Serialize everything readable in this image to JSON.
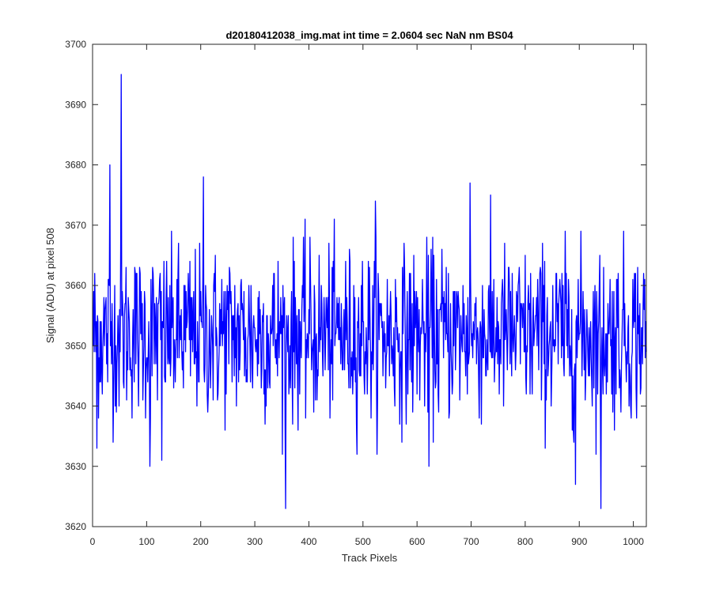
{
  "chart_data": {
    "type": "line",
    "title": "d20180412038_img.mat int time = 2.0604 sec  NaN nm BS04",
    "xlabel": "Track Pixels",
    "ylabel": "Signal (ADU) at pixel 508",
    "xlim": [
      0,
      1024
    ],
    "ylim": [
      3620,
      3700
    ],
    "xticks": [
      0,
      100,
      200,
      300,
      400,
      500,
      600,
      700,
      800,
      900,
      1000
    ],
    "yticks": [
      3620,
      3630,
      3640,
      3650,
      3660,
      3670,
      3680,
      3690,
      3700
    ],
    "grid": false,
    "legend": "none",
    "series": [
      {
        "color": "#0000ff",
        "x_start": 1,
        "x_step": 1,
        "mean": 3652,
        "std_dev": 7,
        "point_count": 1024,
        "notable_points": [
          {
            "x": 8,
            "y": 3633
          },
          {
            "x": 32,
            "y": 3680
          },
          {
            "x": 53,
            "y": 3695
          },
          {
            "x": 106,
            "y": 3630
          },
          {
            "x": 128,
            "y": 3631
          },
          {
            "x": 205,
            "y": 3678
          },
          {
            "x": 357,
            "y": 3623
          },
          {
            "x": 523,
            "y": 3674
          },
          {
            "x": 622,
            "y": 3630
          },
          {
            "x": 698,
            "y": 3677
          },
          {
            "x": 893,
            "y": 3627
          },
          {
            "x": 940,
            "y": 3623
          }
        ]
      }
    ]
  }
}
